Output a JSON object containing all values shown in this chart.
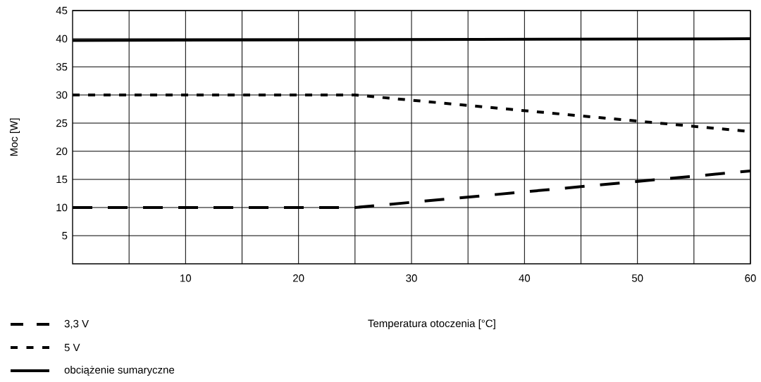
{
  "chart_data": {
    "type": "line",
    "xlabel": "Temperatura otoczenia [°C]",
    "ylabel": "Moc [W]",
    "xlim": [
      0,
      60
    ],
    "ylim": [
      0,
      45
    ],
    "xticks": [
      {
        "value": 5,
        "label": null
      },
      10,
      {
        "value": 15,
        "label": null
      },
      20,
      {
        "value": 25,
        "label": null
      },
      30,
      {
        "value": 35,
        "label": null
      },
      40,
      {
        "value": 45,
        "label": null
      },
      50,
      {
        "value": 55,
        "label": null
      },
      60
    ],
    "yticks": [
      5,
      10,
      15,
      20,
      25,
      30,
      35,
      40,
      45
    ],
    "grid": true,
    "legend": "bottom left",
    "marker": "none",
    "series": [
      {
        "name": "3,3 V",
        "color": "#000000",
        "line_style": "dashed",
        "x": [
          0,
          25,
          60
        ],
        "values": [
          10,
          10,
          16.5
        ]
      },
      {
        "name": "5 V",
        "color": "#000000",
        "line_style": "dotted",
        "x": [
          0,
          25,
          60
        ],
        "values": [
          30,
          30,
          23.5
        ]
      },
      {
        "name": "obciążenie sumaryczne",
        "color": "#000000",
        "line_style": "solid",
        "x": [
          0,
          60
        ],
        "values": [
          39.7,
          40
        ]
      }
    ]
  }
}
